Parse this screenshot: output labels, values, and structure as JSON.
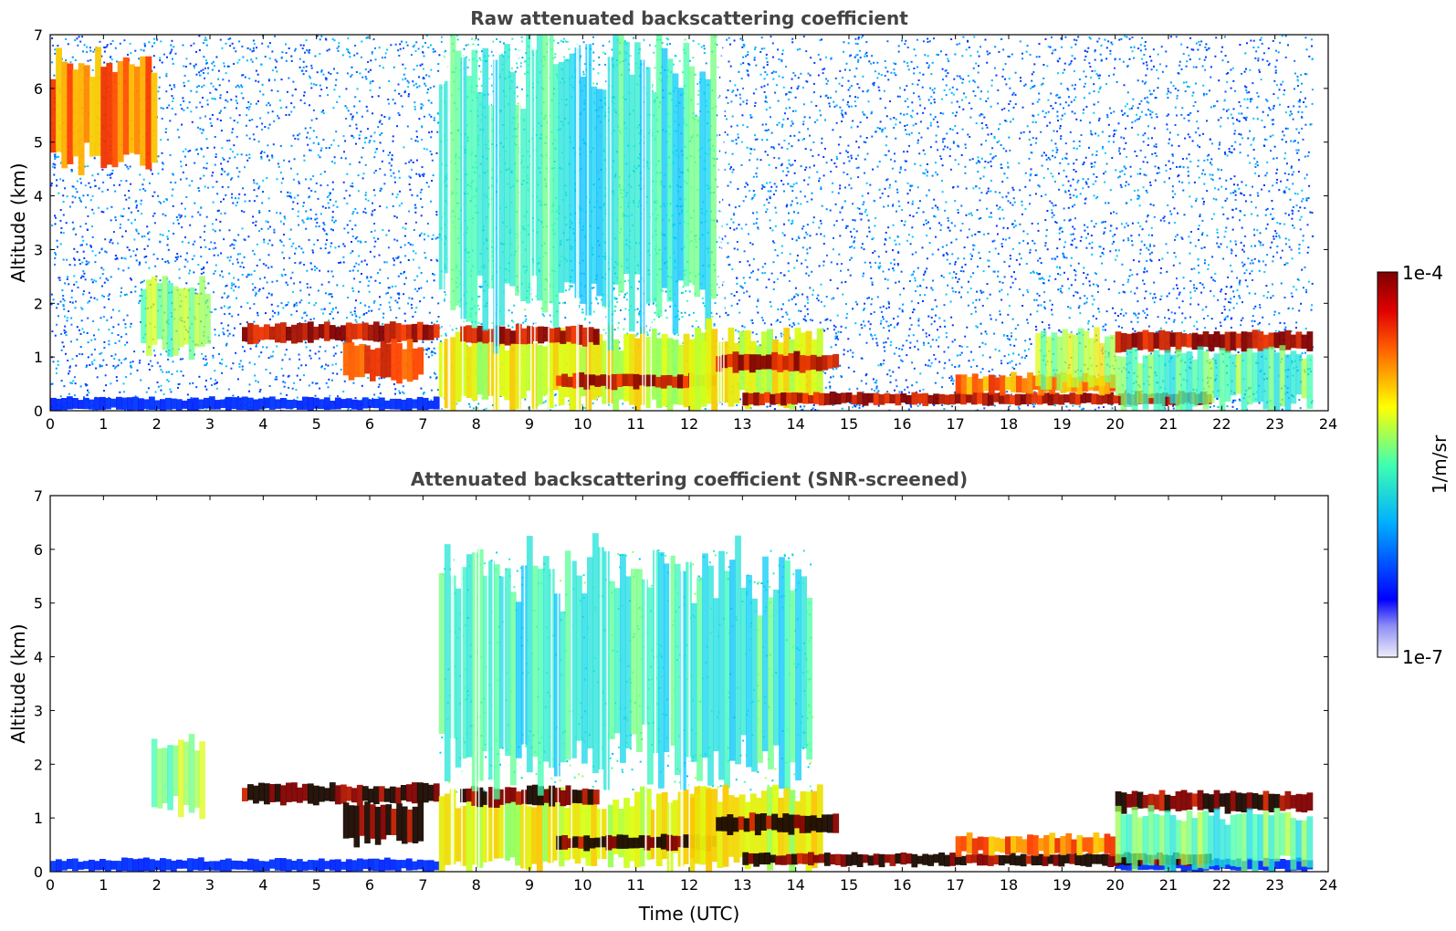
{
  "chart_data": [
    {
      "type": "heatmap",
      "title": "Raw attenuated backscattering coefficient",
      "xlabel": "",
      "ylabel": "Altitude (km)",
      "xlim": [
        0,
        24
      ],
      "ylim": [
        0,
        7
      ],
      "xticks": [
        "0",
        "1",
        "2",
        "3",
        "4",
        "5",
        "6",
        "7",
        "8",
        "9",
        "10",
        "11",
        "12",
        "13",
        "14",
        "15",
        "16",
        "17",
        "18",
        "19",
        "20",
        "21",
        "22",
        "23",
        "24"
      ],
      "yticks": [
        "0",
        "1",
        "2",
        "3",
        "4",
        "5",
        "6",
        "7"
      ],
      "noise": "dense",
      "features": [
        {
          "kind": "aerosol_layer",
          "x": [
            0,
            7.3
          ],
          "y": [
            0,
            0.25
          ],
          "level": 0.3
        },
        {
          "kind": "cloud",
          "x": [
            0,
            2
          ],
          "y": [
            4.5,
            6.7
          ],
          "level": 0.8
        },
        {
          "kind": "aerosol",
          "x": [
            1.7,
            3.0
          ],
          "y": [
            1.0,
            2.5
          ],
          "level": 0.55
        },
        {
          "kind": "cloud_layer",
          "x": [
            3.6,
            7.3
          ],
          "y": [
            1.25,
            1.65
          ],
          "level": 0.95
        },
        {
          "kind": "cloud_layer",
          "x": [
            5.5,
            7.0
          ],
          "y": [
            0.5,
            1.3
          ],
          "level": 0.9
        },
        {
          "kind": "boundary_layer",
          "x": [
            7.3,
            12.4
          ],
          "y": [
            0,
            1.5
          ],
          "level": 0.65
        },
        {
          "kind": "cloud_layer",
          "x": [
            7.7,
            10.3
          ],
          "y": [
            1.2,
            1.6
          ],
          "level": 0.95
        },
        {
          "kind": "cloud_layer",
          "x": [
            9.5,
            12.5
          ],
          "y": [
            0.4,
            0.7
          ],
          "level": 0.95
        },
        {
          "kind": "aerosol",
          "x": [
            7.3,
            12.5
          ],
          "y": [
            1.5,
            7.0
          ],
          "level": 0.45
        },
        {
          "kind": "boundary_layer",
          "x": [
            12.0,
            14.5
          ],
          "y": [
            0,
            1.6
          ],
          "level": 0.65
        },
        {
          "kind": "cloud_layer",
          "x": [
            12.5,
            14.8
          ],
          "y": [
            0.7,
            1.1
          ],
          "level": 0.95
        },
        {
          "kind": "cloud_layer",
          "x": [
            13.0,
            21.8
          ],
          "y": [
            0.1,
            0.35
          ],
          "level": 0.95
        },
        {
          "kind": "boundary_layer",
          "x": [
            17.0,
            20.0
          ],
          "y": [
            0.3,
            0.7
          ],
          "level": 0.8
        },
        {
          "kind": "aerosol",
          "x": [
            18.5,
            20.0
          ],
          "y": [
            0.4,
            1.5
          ],
          "level": 0.6
        },
        {
          "kind": "cloud_layer",
          "x": [
            20.0,
            23.7
          ],
          "y": [
            1.1,
            1.5
          ],
          "level": 0.95
        },
        {
          "kind": "aerosol",
          "x": [
            20.0,
            23.7
          ],
          "y": [
            0,
            1.2
          ],
          "level": 0.5
        }
      ]
    },
    {
      "type": "heatmap",
      "title": "Attenuated backscattering coefficient (SNR-screened)",
      "xlabel": "Time (UTC)",
      "ylabel": "Altitude (km)",
      "xlim": [
        0,
        24
      ],
      "ylim": [
        0,
        7
      ],
      "xticks": [
        "0",
        "1",
        "2",
        "3",
        "4",
        "5",
        "6",
        "7",
        "8",
        "9",
        "10",
        "11",
        "12",
        "13",
        "14",
        "15",
        "16",
        "17",
        "18",
        "19",
        "20",
        "21",
        "22",
        "23",
        "24"
      ],
      "yticks": [
        "0",
        "1",
        "2",
        "3",
        "4",
        "5",
        "6",
        "7"
      ],
      "noise": "screened",
      "features": [
        {
          "kind": "aerosol_layer",
          "x": [
            0,
            7.3
          ],
          "y": [
            0,
            0.25
          ],
          "level": 0.2
        },
        {
          "kind": "aerosol_layer",
          "x": [
            20.0,
            23.7
          ],
          "y": [
            0,
            0.25
          ],
          "level": 0.2
        },
        {
          "kind": "aerosol",
          "x": [
            1.9,
            2.9
          ],
          "y": [
            1.0,
            2.5
          ],
          "level": 0.55
        },
        {
          "kind": "cloud_layer",
          "x": [
            3.6,
            7.3
          ],
          "y": [
            1.25,
            1.65
          ],
          "level": 1.0
        },
        {
          "kind": "cloud_layer",
          "x": [
            5.5,
            7.0
          ],
          "y": [
            0.5,
            1.3
          ],
          "level": 1.0
        },
        {
          "kind": "boundary_layer",
          "x": [
            7.3,
            12.4
          ],
          "y": [
            0,
            1.5
          ],
          "level": 0.65
        },
        {
          "kind": "cloud_layer",
          "x": [
            7.7,
            10.3
          ],
          "y": [
            1.2,
            1.6
          ],
          "level": 1.0
        },
        {
          "kind": "cloud_layer",
          "x": [
            9.5,
            12.5
          ],
          "y": [
            0.4,
            0.7
          ],
          "level": 1.0
        },
        {
          "kind": "aerosol",
          "x": [
            7.3,
            14.3
          ],
          "y": [
            1.5,
            6.0
          ],
          "level": 0.45
        },
        {
          "kind": "boundary_layer",
          "x": [
            12.0,
            14.5
          ],
          "y": [
            0,
            1.6
          ],
          "level": 0.65
        },
        {
          "kind": "cloud_layer",
          "x": [
            12.5,
            14.8
          ],
          "y": [
            0.7,
            1.1
          ],
          "level": 1.0
        },
        {
          "kind": "cloud_layer",
          "x": [
            13.0,
            21.8
          ],
          "y": [
            0.1,
            0.35
          ],
          "level": 1.0
        },
        {
          "kind": "boundary_layer",
          "x": [
            17.0,
            20.0
          ],
          "y": [
            0.3,
            0.7
          ],
          "level": 0.8
        },
        {
          "kind": "cloud_layer",
          "x": [
            20.0,
            23.7
          ],
          "y": [
            1.1,
            1.5
          ],
          "level": 1.0
        },
        {
          "kind": "aerosol",
          "x": [
            20.0,
            23.7
          ],
          "y": [
            0,
            1.2
          ],
          "level": 0.5
        }
      ]
    }
  ],
  "colorbar": {
    "label": "1/m/sr",
    "max_label": "1e-4",
    "min_label": "1e-7",
    "colormap": "jet"
  }
}
